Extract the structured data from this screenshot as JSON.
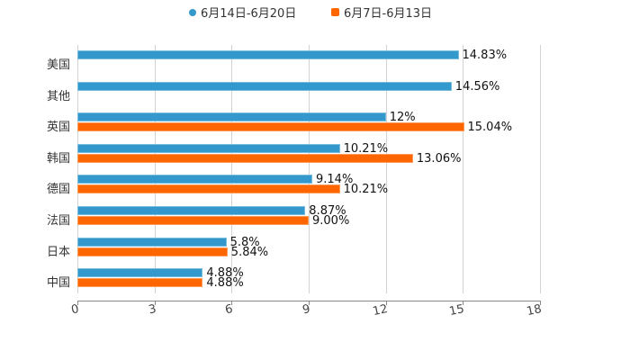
{
  "chart_data": {
    "type": "bar",
    "orientation": "horizontal",
    "title": "",
    "xlabel": "",
    "ylabel": "",
    "xlim": [
      0,
      18
    ],
    "x_ticks": [
      "0",
      "3",
      "6",
      "9",
      "12",
      "15",
      "18"
    ],
    "grid": true,
    "legend_position": "top",
    "categories": [
      "美国",
      "其他",
      "英国",
      "韩国",
      "德国",
      "法国",
      "日本",
      "中国"
    ],
    "series": [
      {
        "name": "6月14日-6月20日",
        "color": "#3399cc",
        "marker": "circle",
        "values": [
          14.83,
          14.56,
          12,
          10.21,
          9.14,
          8.87,
          5.8,
          4.88
        ],
        "labels": [
          "14.83%",
          "14.56%",
          "12%",
          "10.21%",
          "9.14%",
          "8.87%",
          "5.8%",
          "4.88%"
        ]
      },
      {
        "name": "6月7日-6月13日",
        "color": "#ff6600",
        "marker": "square",
        "values": [
          null,
          null,
          15.04,
          13.06,
          10.21,
          9.0,
          5.84,
          4.88
        ],
        "labels": [
          "",
          "",
          "15.04%",
          "13.06%",
          "10.21%",
          "9.00%",
          "5.84%",
          "4.88%"
        ]
      }
    ]
  }
}
